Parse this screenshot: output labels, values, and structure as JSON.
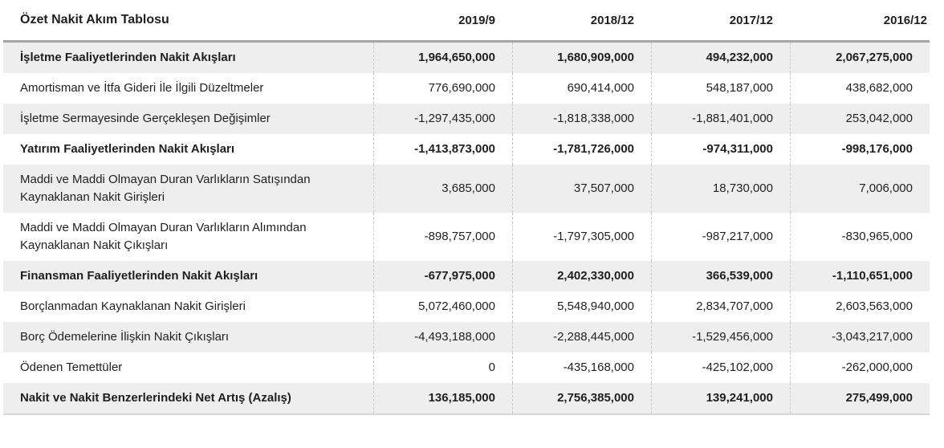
{
  "table": {
    "title": "Özet Nakit Akım Tablosu",
    "columns": [
      "2019/9",
      "2018/12",
      "2017/12",
      "2016/12"
    ],
    "rows": [
      {
        "label": "İşletme Faaliyetlerinden Nakit Akışları",
        "bold": true,
        "values": [
          "1,964,650,000",
          "1,680,909,000",
          "494,232,000",
          "2,067,275,000"
        ]
      },
      {
        "label": "Amortisman ve İtfa Gideri İle İlgili Düzeltmeler",
        "bold": false,
        "values": [
          "776,690,000",
          "690,414,000",
          "548,187,000",
          "438,682,000"
        ]
      },
      {
        "label": "İşletme Sermayesinde Gerçekleşen Değişimler",
        "bold": false,
        "values": [
          "-1,297,435,000",
          "-1,818,338,000",
          "-1,881,401,000",
          "253,042,000"
        ]
      },
      {
        "label": "Yatırım Faaliyetlerinden Nakit Akışları",
        "bold": true,
        "values": [
          "-1,413,873,000",
          "-1,781,726,000",
          "-974,311,000",
          "-998,176,000"
        ]
      },
      {
        "label": "Maddi ve Maddi Olmayan Duran Varlıkların Satışından Kaynaklanan Nakit Girişleri",
        "bold": false,
        "values": [
          "3,685,000",
          "37,507,000",
          "18,730,000",
          "7,006,000"
        ]
      },
      {
        "label": "Maddi ve Maddi Olmayan Duran Varlıkların Alımından Kaynaklanan Nakit Çıkışları",
        "bold": false,
        "values": [
          "-898,757,000",
          "-1,797,305,000",
          "-987,217,000",
          "-830,965,000"
        ]
      },
      {
        "label": "Finansman Faaliyetlerinden Nakit Akışları",
        "bold": true,
        "values": [
          "-677,975,000",
          "2,402,330,000",
          "366,539,000",
          "-1,110,651,000"
        ]
      },
      {
        "label": "Borçlanmadan Kaynaklanan Nakit Girişleri",
        "bold": false,
        "values": [
          "5,072,460,000",
          "5,548,940,000",
          "2,834,707,000",
          "2,603,563,000"
        ]
      },
      {
        "label": "Borç Ödemelerine İlişkin Nakit Çıkışları",
        "bold": false,
        "values": [
          "-4,493,188,000",
          "-2,288,445,000",
          "-1,529,456,000",
          "-3,043,217,000"
        ]
      },
      {
        "label": "Ödenen Temettüler",
        "bold": false,
        "values": [
          "0",
          "-435,168,000",
          "-425,102,000",
          "-262,000,000"
        ]
      },
      {
        "label": "Nakit ve Nakit Benzerlerindeki Net Artış (Azalış)",
        "bold": true,
        "values": [
          "136,185,000",
          "2,756,385,000",
          "139,241,000",
          "275,499,000"
        ]
      }
    ],
    "colors": {
      "row_stripe": "#eeeeee",
      "header_rule": "#a6a6a6",
      "column_divider_dashed": "#c9c9c9",
      "bottom_border": "#d7d7d7",
      "text": "#1f1f1f"
    }
  }
}
